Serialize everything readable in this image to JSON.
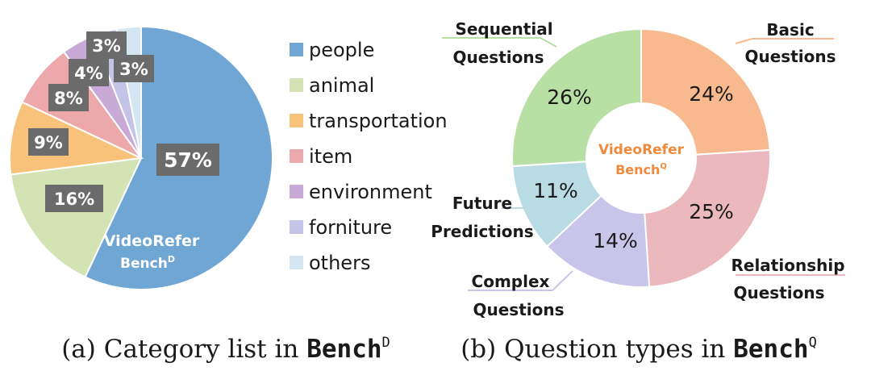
{
  "chart_data": [
    {
      "type": "pie",
      "title": "",
      "center_label": {
        "line1": "VideoRefer",
        "line2": "Bench",
        "sup": "D"
      },
      "categories": [
        "people",
        "animal",
        "transportation",
        "item",
        "environment",
        "forniture",
        "others"
      ],
      "values": [
        57,
        16,
        9,
        8,
        4,
        3,
        3
      ],
      "labels": [
        "57%",
        "16%",
        "9%",
        "8%",
        "4%",
        "3%",
        "3%"
      ],
      "colors": [
        "#6fa6d3",
        "#d3e3b4",
        "#f8c27a",
        "#eca8ab",
        "#c9a9d5",
        "#c4c4e8",
        "#d3e6f2"
      ],
      "legend_position": "right"
    },
    {
      "type": "pie",
      "title": "",
      "donut": true,
      "center_label": {
        "line1": "VideoRefer",
        "line2": "Bench",
        "sup": "Q"
      },
      "categories": [
        "Basic Questions",
        "Relationship Questions",
        "Complex Questions",
        "Future Predictions",
        "Sequential Questions"
      ],
      "category_lines": [
        [
          "Basic",
          "Questions"
        ],
        [
          "Relationship",
          "Questions"
        ],
        [
          "Complex",
          "Questions"
        ],
        [
          "Future",
          "Predictions"
        ],
        [
          "Sequential",
          "Questions"
        ]
      ],
      "values": [
        24,
        25,
        14,
        11,
        26
      ],
      "labels": [
        "24%",
        "25%",
        "14%",
        "11%",
        "26%"
      ],
      "colors": [
        "#f7b98d",
        "#ebb9bd",
        "#c9c4ea",
        "#b8dbe4",
        "#b8dfa4"
      ],
      "center_color": "#ef8a3c"
    }
  ],
  "captions": {
    "a": {
      "text": "(a) Category list in ",
      "bold": "Bench",
      "sup": "D"
    },
    "b": {
      "text": "(b) Question types in ",
      "bold": "Bench",
      "sup": "Q"
    }
  },
  "colors": {
    "label_box": "#6b6b6b",
    "label_text": "#ffffff",
    "text": "#1a1a1a"
  }
}
